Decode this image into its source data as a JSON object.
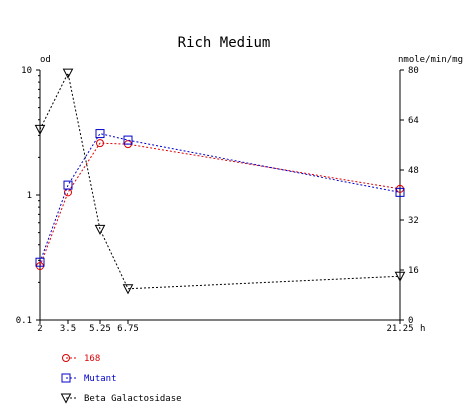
{
  "chart_data": {
    "type": "line",
    "title": "Rich Medium",
    "x_unit": "h",
    "x_ticks": [
      2,
      3.5,
      5.25,
      6.75,
      21.25
    ],
    "x_tick_labels": [
      "2",
      "3.5",
      "5.25",
      "6.75",
      "21.25"
    ],
    "xlim": [
      2,
      21.25
    ],
    "left_axis": {
      "label": "od",
      "scale": "log",
      "ylim": [
        0.1,
        10
      ],
      "tick_labels": [
        "0.1",
        "1",
        "10"
      ]
    },
    "right_axis": {
      "label": "nmole/min/mg",
      "scale": "linear",
      "ylim": [
        0,
        80
      ],
      "ticks": [
        0,
        16,
        32,
        48,
        64,
        80
      ],
      "tick_labels": [
        "0",
        "16",
        "32",
        "48",
        "64",
        "80"
      ]
    },
    "series": [
      {
        "name": "168",
        "axis": "left",
        "marker": "circle",
        "color": "#dd0000",
        "x": [
          2,
          3.5,
          5.25,
          6.75,
          21.25
        ],
        "y": [
          0.27,
          1.05,
          2.6,
          2.55,
          1.12
        ]
      },
      {
        "name": "Mutant",
        "axis": "left",
        "marker": "square",
        "color": "#0000cc",
        "x": [
          2,
          3.5,
          5.25,
          6.75,
          21.25
        ],
        "y": [
          0.29,
          1.2,
          3.1,
          2.75,
          1.05
        ]
      },
      {
        "name": "Beta Galactosidase",
        "axis": "right",
        "marker": "triangle-down",
        "color": "#000000",
        "x": [
          2,
          3.5,
          5.25,
          6.75,
          21.25
        ],
        "y": [
          61,
          79,
          29,
          10,
          14
        ]
      }
    ],
    "legend": "bottom-left",
    "grid": false
  }
}
